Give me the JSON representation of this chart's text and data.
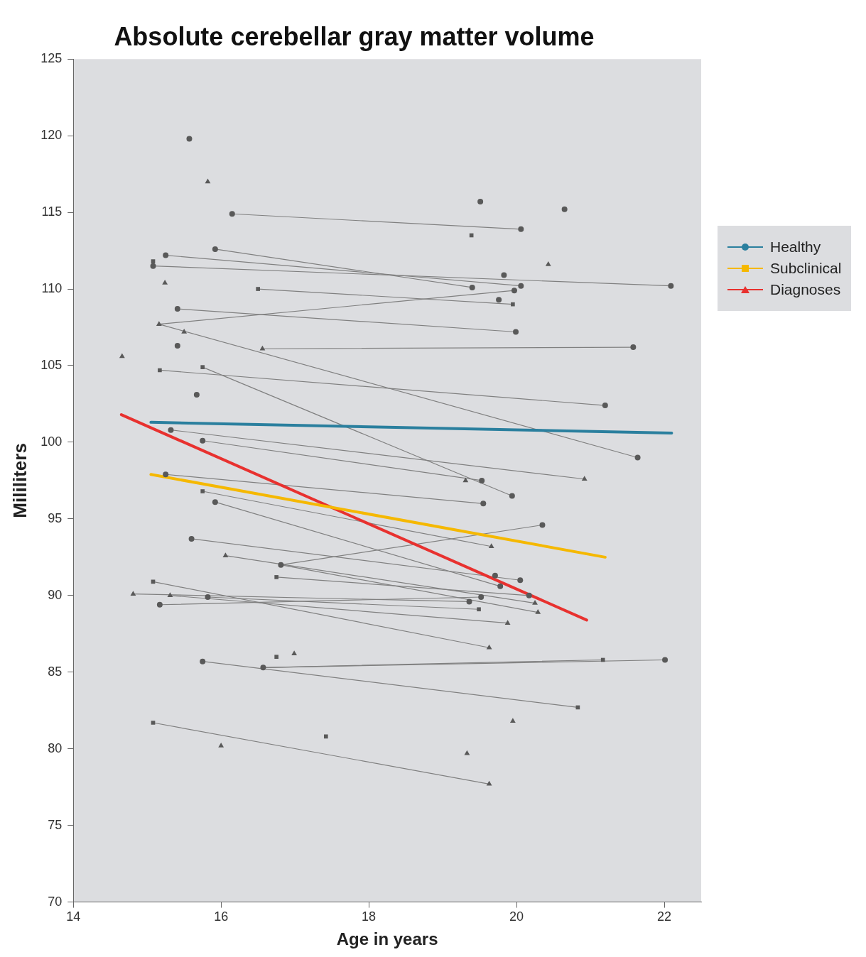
{
  "chart_data": {
    "type": "line",
    "title": "Absolute cerebellar gray matter volume",
    "xlabel": "Age in years",
    "ylabel": "Mililiters",
    "xlim": [
      14,
      22.5
    ],
    "xticks": [
      14,
      16,
      18,
      20,
      22
    ],
    "ylim": [
      70,
      125
    ],
    "yticks": [
      70,
      75,
      80,
      85,
      90,
      95,
      100,
      105,
      110,
      115,
      120,
      125
    ],
    "grid": false,
    "legend": "right",
    "series": [
      {
        "type": "scatter",
        "color": "#595959",
        "marker": "circle",
        "x": [
          15.57,
          16.15,
          20.06,
          19.51,
          20.65,
          15.92,
          15.25,
          15.08,
          19.83,
          19.4,
          20.06,
          19.97,
          19.76,
          22.09,
          15.41,
          19.99,
          15.41,
          21.58,
          15.67,
          21.2,
          15.32,
          15.75,
          21.64,
          15.25,
          19.53,
          19.94,
          19.55,
          15.92,
          15.6,
          20.35,
          16.81,
          19.71,
          20.05,
          19.78,
          15.82,
          19.52,
          15.17,
          19.36,
          15.75,
          16.57,
          22.01,
          20.17
        ],
        "values": [
          119.8,
          114.9,
          113.9,
          115.7,
          115.2,
          112.6,
          112.2,
          111.5,
          110.9,
          110.1,
          110.2,
          109.9,
          109.3,
          110.2,
          108.7,
          107.2,
          106.3,
          106.2,
          103.1,
          102.4,
          100.8,
          100.1,
          99.0,
          97.9,
          97.5,
          96.5,
          96.0,
          96.1,
          93.7,
          94.6,
          92.0,
          91.3,
          91.0,
          90.6,
          89.9,
          89.9,
          89.4,
          89.6,
          85.7,
          85.3,
          85.8,
          90.0
        ]
      },
      {
        "type": "scatter",
        "color": "#595959",
        "marker": "square",
        "x": [
          15.08,
          19.39,
          16.5,
          19.95,
          15.17,
          15.75,
          15.75,
          15.08,
          16.75,
          16.75,
          19.49,
          21.17,
          20.83,
          15.08,
          17.42
        ],
        "values": [
          111.8,
          113.5,
          110.0,
          109.0,
          104.7,
          104.9,
          96.8,
          90.9,
          91.2,
          86.0,
          89.1,
          85.8,
          82.7,
          81.7,
          80.8
        ]
      },
      {
        "type": "scatter",
        "color": "#595959",
        "marker": "triangle",
        "x": [
          15.82,
          20.43,
          15.24,
          15.16,
          15.5,
          16.56,
          14.66,
          19.31,
          20.92,
          19.66,
          16.06,
          14.81,
          15.31,
          20.25,
          20.29,
          19.88,
          19.63,
          16.99,
          16.0,
          19.33,
          19.95,
          19.63
        ],
        "values": [
          117.0,
          111.6,
          110.4,
          107.7,
          107.2,
          106.1,
          105.6,
          97.5,
          97.6,
          93.2,
          92.6,
          90.1,
          90.0,
          89.5,
          88.9,
          88.2,
          86.6,
          86.2,
          80.2,
          79.7,
          81.8,
          77.7
        ]
      },
      {
        "type": "line",
        "color": "#808080",
        "marker": "none",
        "x": [
          16.15,
          20.06
        ],
        "values": [
          114.9,
          113.9
        ]
      },
      {
        "type": "line",
        "color": "#808080",
        "marker": "none",
        "x": [
          15.25,
          20.06
        ],
        "values": [
          112.2,
          110.2
        ]
      },
      {
        "type": "line",
        "color": "#808080",
        "marker": "none",
        "x": [
          15.92,
          19.4
        ],
        "values": [
          112.6,
          110.1
        ]
      },
      {
        "type": "line",
        "color": "#808080",
        "marker": "none",
        "x": [
          15.08,
          22.09
        ],
        "values": [
          111.5,
          110.2
        ]
      },
      {
        "type": "line",
        "color": "#808080",
        "marker": "none",
        "x": [
          16.5,
          19.95
        ],
        "values": [
          110.0,
          109.0
        ]
      },
      {
        "type": "line",
        "color": "#808080",
        "marker": "none",
        "x": [
          15.16,
          19.97
        ],
        "values": [
          107.7,
          109.9
        ]
      },
      {
        "type": "line",
        "color": "#808080",
        "marker": "none",
        "x": [
          15.41,
          19.99
        ],
        "values": [
          108.7,
          107.2
        ]
      },
      {
        "type": "line",
        "color": "#808080",
        "marker": "none",
        "x": [
          15.16,
          21.64
        ],
        "values": [
          107.7,
          99.0
        ]
      },
      {
        "type": "line",
        "color": "#808080",
        "marker": "none",
        "x": [
          16.56,
          21.58
        ],
        "values": [
          106.1,
          106.2
        ]
      },
      {
        "type": "line",
        "color": "#808080",
        "marker": "none",
        "x": [
          15.17,
          21.2
        ],
        "values": [
          104.7,
          102.4
        ]
      },
      {
        "type": "line",
        "color": "#808080",
        "marker": "none",
        "x": [
          15.75,
          19.94
        ],
        "values": [
          104.9,
          96.5
        ]
      },
      {
        "type": "line",
        "color": "#808080",
        "marker": "none",
        "x": [
          15.32,
          20.92
        ],
        "values": [
          100.8,
          97.6
        ]
      },
      {
        "type": "line",
        "color": "#808080",
        "marker": "none",
        "x": [
          15.75,
          19.53
        ],
        "values": [
          100.1,
          97.5
        ]
      },
      {
        "type": "line",
        "color": "#808080",
        "marker": "none",
        "x": [
          15.25,
          19.55
        ],
        "values": [
          97.9,
          96.0
        ]
      },
      {
        "type": "line",
        "color": "#808080",
        "marker": "none",
        "x": [
          15.75,
          19.66
        ],
        "values": [
          96.8,
          93.2
        ]
      },
      {
        "type": "line",
        "color": "#808080",
        "marker": "none",
        "x": [
          15.92,
          19.78
        ],
        "values": [
          96.1,
          90.6
        ]
      },
      {
        "type": "line",
        "color": "#808080",
        "marker": "none",
        "x": [
          15.6,
          20.05
        ],
        "values": [
          93.7,
          91.0
        ]
      },
      {
        "type": "line",
        "color": "#808080",
        "marker": "none",
        "x": [
          16.81,
          20.35
        ],
        "values": [
          92.0,
          94.6
        ]
      },
      {
        "type": "line",
        "color": "#808080",
        "marker": "none",
        "x": [
          16.06,
          20.25
        ],
        "values": [
          92.6,
          89.5
        ]
      },
      {
        "type": "line",
        "color": "#808080",
        "marker": "none",
        "x": [
          16.81,
          20.29
        ],
        "values": [
          92.0,
          88.9
        ]
      },
      {
        "type": "line",
        "color": "#808080",
        "marker": "none",
        "x": [
          16.75,
          20.17
        ],
        "values": [
          91.2,
          90.0
        ]
      },
      {
        "type": "line",
        "color": "#808080",
        "marker": "none",
        "x": [
          15.08,
          19.63
        ],
        "values": [
          90.9,
          86.6
        ]
      },
      {
        "type": "line",
        "color": "#808080",
        "marker": "none",
        "x": [
          14.81,
          19.36
        ],
        "values": [
          90.1,
          89.6
        ]
      },
      {
        "type": "line",
        "color": "#808080",
        "marker": "none",
        "x": [
          15.31,
          19.88
        ],
        "values": [
          90.0,
          88.2
        ]
      },
      {
        "type": "line",
        "color": "#808080",
        "marker": "none",
        "x": [
          15.17,
          19.52
        ],
        "values": [
          89.4,
          89.9
        ]
      },
      {
        "type": "line",
        "color": "#808080",
        "marker": "none",
        "x": [
          15.82,
          19.49
        ],
        "values": [
          89.9,
          89.1
        ]
      },
      {
        "type": "line",
        "color": "#808080",
        "marker": "none",
        "x": [
          15.75,
          20.83
        ],
        "values": [
          85.7,
          82.7
        ]
      },
      {
        "type": "line",
        "color": "#808080",
        "marker": "none",
        "x": [
          16.57,
          22.01
        ],
        "values": [
          85.3,
          85.8
        ]
      },
      {
        "type": "line",
        "color": "#808080",
        "marker": "none",
        "x": [
          16.57,
          21.17
        ],
        "values": [
          85.3,
          85.8
        ]
      },
      {
        "type": "line",
        "color": "#808080",
        "marker": "none",
        "x": [
          15.08,
          19.63
        ],
        "values": [
          81.7,
          77.7
        ]
      },
      {
        "type": "line",
        "name": "Healthy",
        "color": "#2a7f9e",
        "marker": "none",
        "x": [
          15.05,
          22.1
        ],
        "values": [
          101.3,
          100.6
        ]
      },
      {
        "type": "line",
        "name": "Subclinical",
        "color": "#f5b800",
        "marker": "none",
        "x": [
          15.05,
          21.2
        ],
        "values": [
          97.9,
          92.5
        ]
      },
      {
        "type": "line",
        "name": "Diagnoses",
        "color": "#e8312f",
        "marker": "none",
        "x": [
          14.65,
          20.95
        ],
        "values": [
          101.8,
          88.4
        ]
      }
    ]
  }
}
